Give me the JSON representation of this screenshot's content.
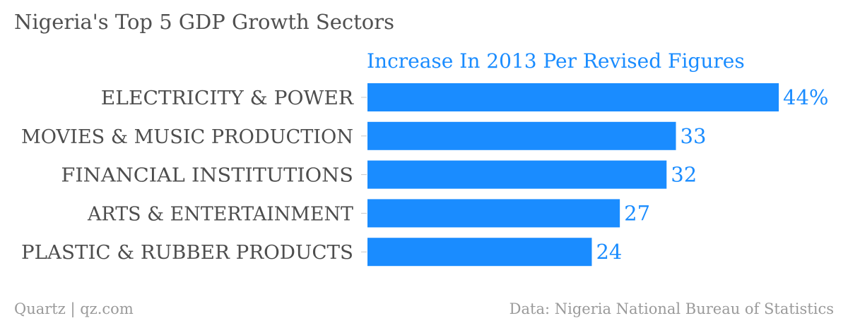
{
  "title": "Nigeria's Top 5 GDP Growth Sectors",
  "chart_data": {
    "type": "bar",
    "orientation": "horizontal",
    "series_label": "Increase In 2013 Per Revised Figures",
    "categories": [
      "ELECTRICITY & POWER",
      "MOVIES & MUSIC PRODUCTION",
      "FINANCIAL INSTITUTIONS",
      "ARTS & ENTERTAINMENT",
      "PLASTIC & RUBBER PRODUCTS"
    ],
    "values": [
      44,
      33,
      32,
      27,
      24
    ],
    "value_labels": [
      "44%",
      "33",
      "32",
      "27",
      "24"
    ],
    "unit": "%",
    "xlim": [
      0,
      44
    ],
    "grid": false,
    "bar_color": "#1a8cff",
    "label_color": "#1a8cff",
    "category_color": "#4d4d4d"
  },
  "footer": {
    "left": "Quartz | qz.com",
    "right": "Data: Nigeria National Bureau of Statistics"
  }
}
